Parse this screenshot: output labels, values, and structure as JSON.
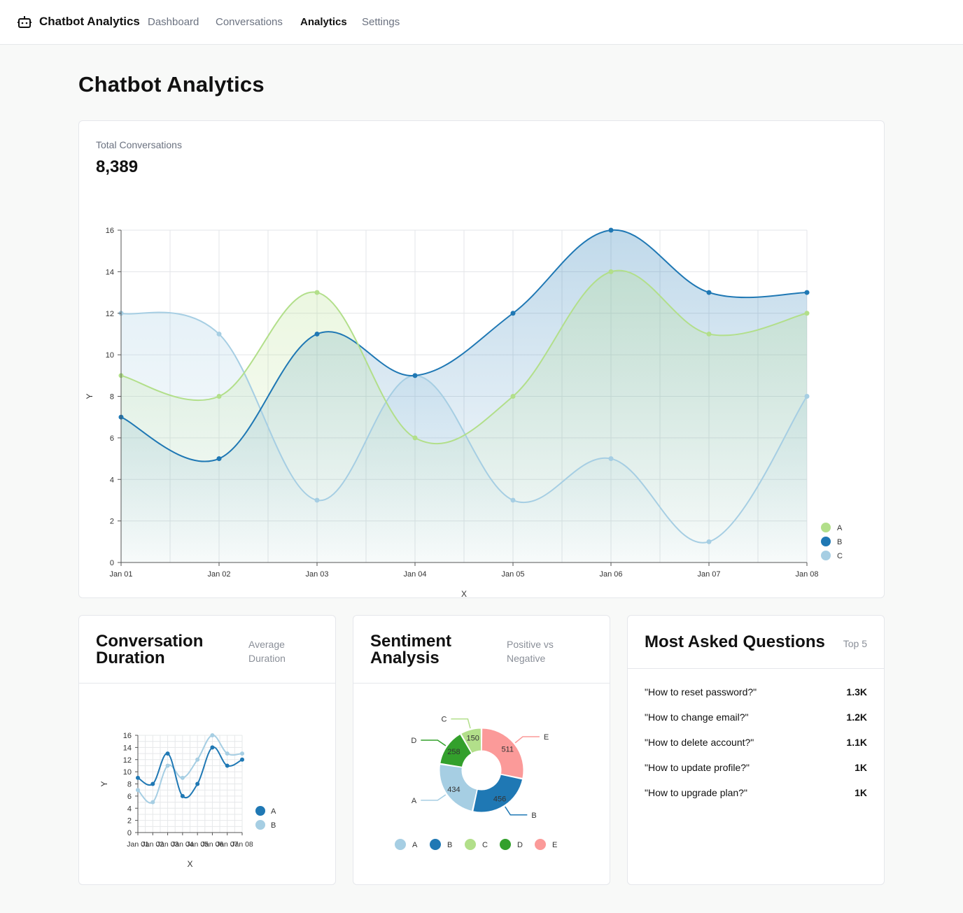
{
  "nav": {
    "brand": "Chatbot Analytics",
    "links": [
      "Dashboard",
      "Conversations",
      "Analytics",
      "Settings"
    ],
    "active": "Analytics"
  },
  "page": {
    "title": "Chatbot Analytics"
  },
  "total_conversations": {
    "label": "Total Conversations",
    "value": "8,389"
  },
  "duration_card": {
    "title_line1": "Conversation",
    "title_line2": "Duration",
    "sub_line1": "Average",
    "sub_line2": "Duration"
  },
  "sentiment_card": {
    "title_line1": "Sentiment",
    "title_line2": "Analysis",
    "sub_line1": "Positive vs",
    "sub_line2": "Negative"
  },
  "questions_card": {
    "title": "Most Asked Questions",
    "sub": "Top 5",
    "items": [
      {
        "question": "\"How to reset password?\"",
        "count": "1.3K"
      },
      {
        "question": "\"How to change email?\"",
        "count": "1.2K"
      },
      {
        "question": "\"How to delete account?\"",
        "count": "1.1K"
      },
      {
        "question": "\"How to update profile?\"",
        "count": "1K"
      },
      {
        "question": "\"How to upgrade plan?\"",
        "count": "1K"
      }
    ]
  },
  "chart_data": [
    {
      "type": "area",
      "categories": [
        "Jan 01",
        "Jan 02",
        "Jan 03",
        "Jan 04",
        "Jan 05",
        "Jan 06",
        "Jan 07",
        "Jan 08"
      ],
      "series": [
        {
          "name": "A",
          "values": [
            9,
            8,
            13,
            6,
            8,
            14,
            11,
            12
          ],
          "color": "#b2df8a"
        },
        {
          "name": "B",
          "values": [
            7,
            5,
            11,
            9,
            12,
            16,
            13,
            13
          ],
          "color": "#1f78b4"
        },
        {
          "name": "C",
          "values": [
            12,
            11,
            3,
            9,
            3,
            5,
            1,
            8
          ],
          "color": "#a6cee3"
        }
      ],
      "xlabel": "X",
      "ylabel": "Y",
      "ylim": [
        0,
        16
      ],
      "yticks": [
        0,
        2,
        4,
        6,
        8,
        10,
        12,
        14,
        16
      ],
      "grid": true,
      "legend": "bottom-right"
    },
    {
      "type": "line",
      "categories": [
        "Jan 01",
        "Jan 02",
        "Jan 03",
        "Jan 04",
        "Jan 05",
        "Jan 06",
        "Jan 07",
        "Jan 08"
      ],
      "series": [
        {
          "name": "A",
          "values": [
            9,
            8,
            13,
            6,
            8,
            14,
            11,
            12
          ],
          "color": "#1f78b4"
        },
        {
          "name": "B",
          "values": [
            7,
            5,
            11,
            9,
            12,
            16,
            13,
            13
          ],
          "color": "#a6cee3"
        }
      ],
      "xlabel": "X",
      "ylabel": "Y",
      "ylim": [
        0,
        16
      ],
      "yticks": [
        0,
        2,
        4,
        6,
        8,
        10,
        12,
        14,
        16
      ],
      "grid": true,
      "legend": "right"
    },
    {
      "type": "pie",
      "variant": "donut",
      "slices": [
        {
          "label": "E",
          "value": 511,
          "color": "#fb9a99"
        },
        {
          "label": "B",
          "value": 456,
          "color": "#1f78b4"
        },
        {
          "label": "A",
          "value": 434,
          "color": "#a6cee3"
        },
        {
          "label": "D",
          "value": 258,
          "color": "#33a02c"
        },
        {
          "label": "C",
          "value": 150,
          "color": "#b2df8a"
        }
      ],
      "legend_order": [
        "A",
        "B",
        "C",
        "D",
        "E"
      ],
      "legend": "bottom"
    }
  ]
}
